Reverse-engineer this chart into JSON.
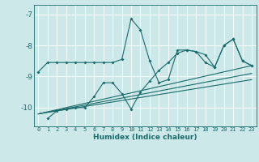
{
  "xlabel": "Humidex (Indice chaleur)",
  "bg_color": "#cce8e8",
  "line_color": "#1a6b6b",
  "grid_color": "#ffffff",
  "xlim": [
    -0.5,
    23.5
  ],
  "ylim": [
    -10.6,
    -6.7
  ],
  "yticks": [
    -10,
    -9,
    -8,
    -7
  ],
  "xticks": [
    0,
    1,
    2,
    3,
    4,
    5,
    6,
    7,
    8,
    9,
    10,
    11,
    12,
    13,
    14,
    15,
    16,
    17,
    18,
    19,
    20,
    21,
    22,
    23
  ],
  "series1_x": [
    0,
    1,
    2,
    3,
    4,
    5,
    6,
    7,
    8,
    9,
    10,
    11,
    12,
    13,
    14,
    15,
    16,
    17,
    18,
    19,
    20,
    21,
    22,
    23
  ],
  "series1_y": [
    -8.85,
    -8.55,
    -8.55,
    -8.55,
    -8.55,
    -8.55,
    -8.55,
    -8.55,
    -8.55,
    -8.45,
    -7.15,
    -7.5,
    -8.5,
    -9.2,
    -9.1,
    -8.15,
    -8.15,
    -8.2,
    -8.3,
    -8.7,
    -8.0,
    -7.8,
    -8.5,
    -8.65
  ],
  "series2_x": [
    1,
    2,
    3,
    4,
    5,
    6,
    7,
    8,
    9,
    10,
    11,
    12,
    13,
    14,
    15,
    16,
    17,
    18,
    19,
    20,
    21,
    22,
    23
  ],
  "series2_y": [
    -10.35,
    -10.1,
    -10.05,
    -10.0,
    -10.0,
    -9.65,
    -9.2,
    -9.2,
    -9.55,
    -10.05,
    -9.5,
    -9.15,
    -8.8,
    -8.55,
    -8.25,
    -8.15,
    -8.2,
    -8.55,
    -8.7,
    -8.0,
    -7.8,
    -8.5,
    -8.65
  ],
  "line1_x": [
    0,
    23
  ],
  "line1_y": [
    -10.2,
    -8.65
  ],
  "line2_x": [
    0,
    23
  ],
  "line2_y": [
    -10.2,
    -8.9
  ],
  "line3_x": [
    0,
    23
  ],
  "line3_y": [
    -10.2,
    -9.1
  ]
}
